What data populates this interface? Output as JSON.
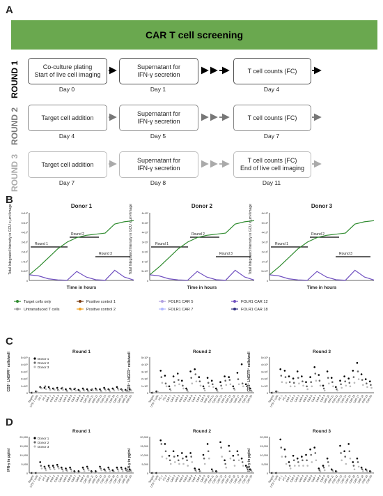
{
  "panels": {
    "a": "A",
    "b": "B",
    "c": "C",
    "d": "D"
  },
  "banner": "CAR T cell screening",
  "rounds": [
    {
      "label": "ROUND 1",
      "boxes": [
        [
          "Co-culture plating",
          "Start of live cell imaging"
        ],
        [
          "Supernatant  for",
          "IFN-γ secretion"
        ],
        [
          "T cell counts (FC)"
        ]
      ],
      "days": [
        "Day 0",
        "Day 1",
        "Day 4"
      ]
    },
    {
      "label": "ROUND 2",
      "boxes": [
        [
          "Target cell addition"
        ],
        [
          "Supernatant  for",
          "IFN-γ secretion"
        ],
        [
          "T cell counts (FC)"
        ]
      ],
      "days": [
        "Day 4",
        "Day 5",
        "Day 7"
      ]
    },
    {
      "label": "ROUND 3",
      "boxes": [
        [
          "Target cell addition"
        ],
        [
          "Supernatant  for",
          "IFN-γ secretion"
        ],
        [
          "T cell counts (FC)",
          "End of live cell imaging"
        ]
      ],
      "days": [
        "Day 7",
        "Day 8",
        "Day 11"
      ]
    }
  ],
  "colors": {
    "banner": "#6aa84f",
    "target": "#2e8b2e",
    "untransduced": "#999999",
    "pos1": "#7a3b10",
    "pos2": "#f0a020",
    "car5": "#b0a0e0",
    "car7": "#b0b8ff",
    "car12": "#7050c0",
    "car18": "#303080"
  },
  "panel_b": {
    "ylabel": "Total Integrated Intensity in GCU x µm²/image",
    "xlabel": "Time in hours",
    "yticks": [
      "6×10⁷",
      "5×10⁷",
      "4×10⁷",
      "3×10⁷",
      "2×10⁷",
      "1×10⁷",
      "5×10⁶",
      "0"
    ],
    "round_labels": [
      "Round 1",
      "Round 2",
      "Round 3"
    ],
    "donors": [
      "Donor 1",
      "Donor 2",
      "Donor 3"
    ],
    "legend": [
      "Target cells only",
      "Untransduced T cells",
      "Positive control 1",
      "Positive control 2",
      "FOLR1 CAR 5",
      "FOLR1 CAR 7",
      "FOLR1 CAR 12",
      "FOLR1 CAR 18"
    ]
  },
  "panel_c": {
    "ylabel": "CD3⁺ LNGFR⁺ cells/well",
    "titles": [
      "Round 1",
      "Round 2",
      "Round 3"
    ],
    "legend": [
      "Donor 1",
      "Donor 2",
      "Donor 3"
    ],
    "yticks": [
      "5×10⁵",
      "4×10⁵",
      "3×10⁵",
      "2×10⁵",
      "1×10⁵",
      "0"
    ]
  },
  "panel_d": {
    "ylabel": "IFN-γ in pg/ml",
    "titles": [
      "Round 1",
      "Round 2",
      "Round 3"
    ],
    "legend": [
      "Donor 1",
      "Donor 2",
      "Donor 3"
    ],
    "yticks": [
      "20,000",
      "15,000",
      "10,000",
      "5,000",
      "0"
    ]
  },
  "categories": [
    "Targets",
    "UTD T cells",
    "PC 1",
    "PC 2",
    "CAR 1",
    "CAR 2",
    "CAR 3",
    "CAR 4",
    "CAR 5",
    "CAR 6",
    "CAR 7",
    "CAR 8",
    "CAR 9",
    "CAR 10",
    "CAR 11",
    "CAR 12",
    "CAR 13",
    "CAR 14",
    "CAR 15",
    "CAR 16",
    "CAR 17",
    "CAR 18",
    "CAR 19",
    "CAR 20"
  ],
  "chart_data": [
    {
      "type": "line",
      "title": "Donor 1",
      "xlabel": "Time in hours",
      "ylabel": "Total Integrated Intensity in GCU x µm²/image",
      "ylim": [
        0,
        60000000
      ],
      "series": [
        {
          "name": "Target cells only",
          "values": [
            5000000,
            12000000,
            20000000,
            28000000,
            34000000,
            38000000,
            40000000,
            41000000,
            42000000,
            50000000,
            52000000,
            53000000
          ]
        },
        {
          "name": "FOLR1 CAR 12",
          "values": [
            5000000,
            4000000,
            1500000,
            500000,
            200000,
            8000000,
            3000000,
            600000,
            200000,
            9000000,
            3000000,
            400000
          ]
        }
      ]
    },
    {
      "type": "line",
      "title": "Donor 2",
      "xlabel": "Time in hours",
      "ylabel": "Total Integrated Intensity in GCU x µm²/image",
      "ylim": [
        0,
        60000000
      ],
      "series": [
        {
          "name": "Target cells only",
          "values": [
            5000000,
            12000000,
            20000000,
            28000000,
            34000000,
            38000000,
            40000000,
            41000000,
            42000000,
            50000000,
            52000000,
            53000000
          ]
        },
        {
          "name": "FOLR1 CAR 12",
          "values": [
            5000000,
            4000000,
            1500000,
            500000,
            200000,
            8000000,
            3000000,
            600000,
            200000,
            9000000,
            3000000,
            400000
          ]
        }
      ]
    },
    {
      "type": "line",
      "title": "Donor 3",
      "xlabel": "Time in hours",
      "ylabel": "Total Integrated Intensity in GCU x µm²/image",
      "ylim": [
        0,
        60000000
      ],
      "series": [
        {
          "name": "Target cells only",
          "values": [
            5000000,
            12000000,
            20000000,
            28000000,
            34000000,
            38000000,
            40000000,
            41000000,
            42000000,
            50000000,
            52000000,
            53000000
          ]
        },
        {
          "name": "FOLR1 CAR 12",
          "values": [
            5000000,
            4000000,
            1500000,
            500000,
            200000,
            8000000,
            3000000,
            600000,
            200000,
            9000000,
            3000000,
            400000
          ]
        }
      ]
    },
    {
      "type": "scatter",
      "title": "Round 1",
      "ylabel": "CD3⁺ LNGFR⁺ cells/well",
      "ylim": [
        0,
        500000
      ],
      "series": [
        {
          "name": "Donor 1",
          "values": [
            0,
            20000,
            80000,
            70000,
            80000,
            60000,
            70000,
            60000,
            50000,
            60000,
            50000,
            40000,
            60000,
            50000,
            40000,
            60000,
            50000,
            70000,
            50000,
            60000,
            80000,
            50000,
            40000,
            50000
          ]
        },
        {
          "name": "Donor 2",
          "values": [
            0,
            15000,
            70000,
            90000,
            60000,
            50000,
            40000,
            70000,
            30000,
            50000,
            60000,
            30000,
            40000,
            30000,
            50000,
            40000,
            30000,
            50000,
            40000,
            50000,
            60000,
            40000,
            30000,
            40000
          ]
        },
        {
          "name": "Donor 3",
          "values": [
            0,
            10000,
            60000,
            50000,
            40000,
            40000,
            30000,
            40000,
            20000,
            30000,
            30000,
            20000,
            30000,
            20000,
            30000,
            30000,
            20000,
            30000,
            20000,
            30000,
            40000,
            20000,
            20000,
            30000
          ]
        }
      ]
    },
    {
      "type": "scatter",
      "title": "Round 2",
      "ylabel": "CD3⁺ LNGFR⁺ cells/well",
      "ylim": [
        0,
        500000
      ],
      "series": [
        {
          "name": "Donor 1",
          "values": [
            0,
            20000,
            310000,
            240000,
            90000,
            230000,
            270000,
            170000,
            60000,
            300000,
            330000,
            220000,
            90000,
            210000,
            170000,
            60000,
            150000,
            230000,
            220000,
            90000,
            280000,
            400000,
            120000,
            60000
          ]
        },
        {
          "name": "Donor 2",
          "values": [
            0,
            15000,
            220000,
            130000,
            50000,
            150000,
            180000,
            100000,
            40000,
            210000,
            260000,
            160000,
            60000,
            140000,
            120000,
            40000,
            100000,
            170000,
            180000,
            60000,
            190000,
            130000,
            90000,
            30000
          ]
        },
        {
          "name": "Donor 3",
          "values": [
            0,
            10000,
            140000,
            90000,
            30000,
            100000,
            120000,
            60000,
            20000,
            130000,
            160000,
            100000,
            30000,
            90000,
            80000,
            20000,
            60000,
            110000,
            120000,
            40000,
            120000,
            90000,
            50000,
            20000
          ]
        }
      ]
    },
    {
      "type": "scatter",
      "title": "Round 3",
      "ylabel": "CD3⁺ LNGFR⁺ cells/well",
      "ylim": [
        0,
        500000
      ],
      "series": [
        {
          "name": "Donor 1",
          "values": [
            0,
            20000,
            330000,
            310000,
            230000,
            200000,
            300000,
            230000,
            150000,
            220000,
            360000,
            250000,
            100000,
            300000,
            210000,
            80000,
            170000,
            230000,
            200000,
            310000,
            420000,
            260000,
            190000,
            160000
          ]
        },
        {
          "name": "Donor 2",
          "values": [
            0,
            15000,
            240000,
            220000,
            150000,
            140000,
            210000,
            160000,
            90000,
            150000,
            270000,
            170000,
            60000,
            210000,
            150000,
            50000,
            120000,
            160000,
            140000,
            220000,
            300000,
            180000,
            130000,
            110000
          ]
        },
        {
          "name": "Donor 3",
          "values": [
            0,
            10000,
            150000,
            140000,
            90000,
            90000,
            130000,
            100000,
            50000,
            90000,
            170000,
            100000,
            30000,
            130000,
            90000,
            30000,
            70000,
            100000,
            90000,
            140000,
            190000,
            110000,
            80000,
            70000
          ]
        }
      ]
    },
    {
      "type": "scatter",
      "title": "Round 1",
      "ylabel": "IFN-γ in pg/ml",
      "ylim": [
        0,
        20000
      ],
      "series": [
        {
          "name": "Donor 1",
          "values": [
            0,
            0,
            6000,
            3500,
            4000,
            4000,
            4500,
            3000,
            2500,
            3000,
            1000,
            1000,
            3000,
            3500,
            1000,
            1000,
            3500,
            2000,
            3000,
            1500,
            3000,
            3000,
            2500,
            2000
          ]
        },
        {
          "name": "Donor 2",
          "values": [
            0,
            0,
            4000,
            2500,
            3000,
            3000,
            3500,
            2000,
            1500,
            2000,
            500,
            500,
            2000,
            2500,
            500,
            500,
            2500,
            1500,
            2000,
            1000,
            2000,
            2000,
            1500,
            1500
          ]
        },
        {
          "name": "Donor 3",
          "values": [
            0,
            0,
            2500,
            1500,
            2000,
            2000,
            2500,
            1000,
            1000,
            1000,
            200,
            200,
            1000,
            1500,
            200,
            200,
            1500,
            800,
            1000,
            500,
            1000,
            1000,
            800,
            800
          ]
        }
      ]
    },
    {
      "type": "scatter",
      "title": "Round 2",
      "ylabel": "IFN-γ in pg/ml",
      "ylim": [
        0,
        20000
      ],
      "series": [
        {
          "name": "Donor 1",
          "values": [
            0,
            0,
            18000,
            16000,
            9500,
            12000,
            9500,
            11000,
            9000,
            11000,
            2500,
            2000,
            10000,
            16000,
            2000,
            1000,
            17000,
            7000,
            15000,
            9500,
            12000,
            8000,
            4000,
            2000
          ]
        },
        {
          "name": "Donor 2",
          "values": [
            0,
            0,
            16000,
            12000,
            7000,
            9000,
            7000,
            8000,
            7000,
            9000,
            1500,
            1000,
            8000,
            12000,
            1000,
            500,
            14000,
            5000,
            12000,
            7000,
            10000,
            6000,
            3000,
            1500
          ]
        },
        {
          "name": "Donor 3",
          "values": [
            0,
            0,
            9000,
            8000,
            5000,
            6000,
            5000,
            5000,
            4000,
            6000,
            800,
            500,
            5000,
            8000,
            500,
            200,
            9000,
            3000,
            8000,
            4000,
            7000,
            4000,
            2000,
            800
          ]
        }
      ]
    },
    {
      "type": "scatter",
      "title": "Round 3",
      "ylabel": "IFN-γ in pg/ml",
      "ylim": [
        0,
        20000
      ],
      "series": [
        {
          "name": "Donor 1",
          "values": [
            0,
            0,
            18500,
            13000,
            6000,
            9500,
            8000,
            9000,
            10000,
            13000,
            14000,
            2500,
            4000,
            8000,
            2000,
            1000,
            15000,
            12000,
            16000,
            6000,
            8000,
            3000,
            2000,
            1000
          ]
        },
        {
          "name": "Donor 2",
          "values": [
            0,
            0,
            14000,
            9000,
            4000,
            7000,
            6000,
            7000,
            7000,
            10000,
            11000,
            1500,
            3000,
            6000,
            1500,
            500,
            11000,
            9000,
            12000,
            4000,
            6000,
            2000,
            1500,
            500
          ]
        },
        {
          "name": "Donor 3",
          "values": [
            0,
            0,
            9000,
            5000,
            2500,
            4000,
            4000,
            4000,
            4000,
            6000,
            7000,
            800,
            1500,
            4000,
            800,
            200,
            7000,
            5000,
            8000,
            2000,
            3500,
            1000,
            800,
            200
          ]
        }
      ]
    }
  ]
}
